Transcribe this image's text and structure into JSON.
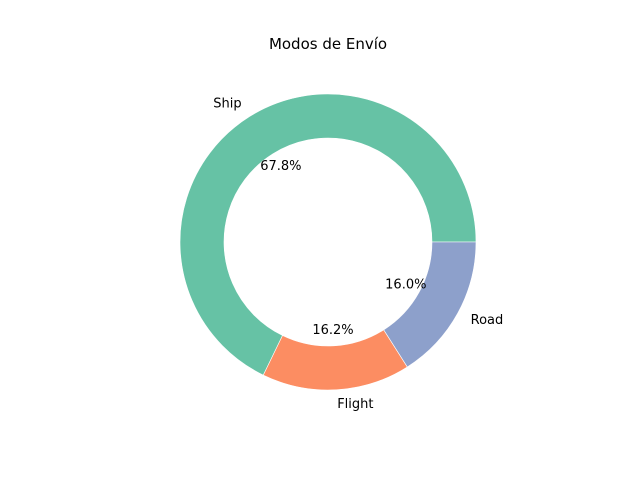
{
  "chart_data": {
    "type": "pie",
    "title": "Modos de Envío",
    "donut": true,
    "start_angle_deg": 0,
    "direction": "counterclockwise",
    "slices": [
      {
        "label": "Ship",
        "value": 67.8,
        "pct_text": "67.8%",
        "color": "#66c2a5"
      },
      {
        "label": "Flight",
        "value": 16.2,
        "pct_text": "16.2%",
        "color": "#fc8d62"
      },
      {
        "label": "Road",
        "value": 16.0,
        "pct_text": "16.0%",
        "color": "#8da0cb"
      }
    ]
  }
}
